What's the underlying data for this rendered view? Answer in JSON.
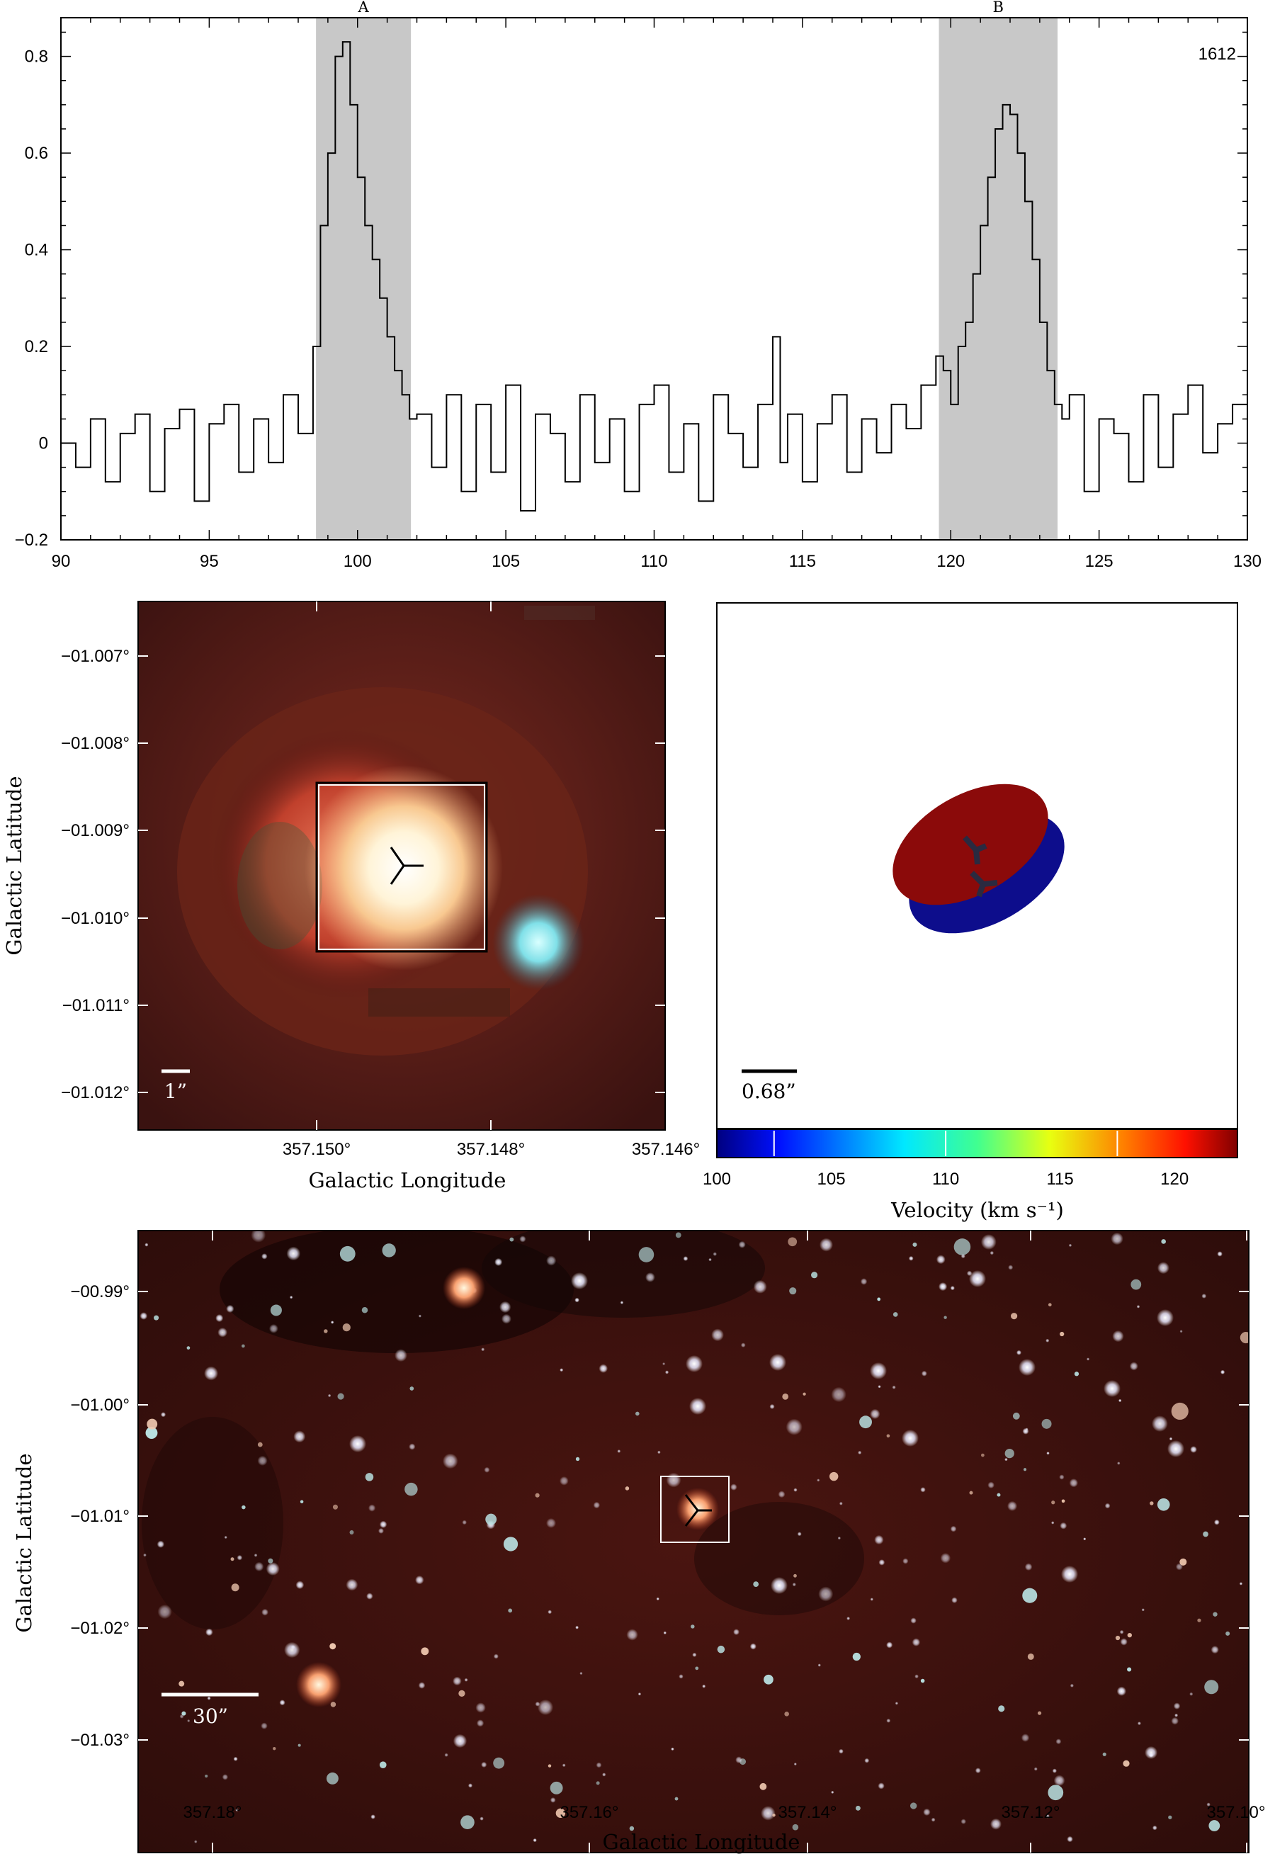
{
  "figure": {
    "spectrum_panel": {
      "label": "1612",
      "region_labels": [
        "A",
        "B"
      ]
    },
    "cutout_panel": {
      "ylabel": "Galactic Latitude",
      "xlabel": "Galactic Longitude",
      "y_ticks": [
        "−01.007°",
        "−01.008°",
        "−01.009°",
        "−01.010°",
        "−01.011°",
        "−01.012°"
      ],
      "x_ticks": [
        "357.150°",
        "357.148°",
        "357.146°"
      ],
      "scalebar_label": "1”"
    },
    "model_panel": {
      "scalebar_label": "0.68”",
      "colorbar_label": "Velocity (km s⁻¹)",
      "colorbar_ticks": [
        "100",
        "105",
        "110",
        "115",
        "120"
      ],
      "colors": {
        "red_lobe": "#8b0a0a",
        "blue_lobe": "#0d0d8c"
      }
    },
    "field_panel": {
      "ylabel": "Galactic Latitude",
      "xlabel": "Galactic Longitude",
      "y_ticks": [
        "−00.99°",
        "−01.00°",
        "−01.01°",
        "−01.02°",
        "−01.03°"
      ],
      "x_ticks": [
        "357.18°",
        "357.16°",
        "357.14°",
        "357.12°",
        "357.10°"
      ],
      "scalebar_label": "30”"
    }
  },
  "chart_data": {
    "type": "line",
    "step": true,
    "title": "",
    "xlabel": "",
    "ylabel": "",
    "xlim": [
      90,
      130
    ],
    "ylim": [
      -0.2,
      0.88
    ],
    "x_ticks": [
      90,
      95,
      100,
      105,
      110,
      115,
      120,
      125,
      130
    ],
    "y_ticks": [
      -0.2,
      0,
      0.2,
      0.4,
      0.6,
      0.8
    ],
    "shaded_regions": [
      {
        "label": "A",
        "x_range": [
          98.6,
          101.8
        ]
      },
      {
        "label": "B",
        "x_range": [
          119.6,
          123.6
        ]
      }
    ],
    "series": [
      {
        "x": [
          90.0,
          90.5,
          91.0,
          91.5,
          92.0,
          92.5,
          93.0,
          93.5,
          94.0,
          94.5,
          95.0,
          95.5,
          96.0,
          96.5,
          97.0,
          97.5,
          98.0,
          98.5,
          98.75,
          99.0,
          99.25,
          99.5,
          99.75,
          100.0,
          100.25,
          100.5,
          100.75,
          101.0,
          101.25,
          101.5,
          101.75,
          102.0,
          102.5,
          103.0,
          103.5,
          104.0,
          104.5,
          105.0,
          105.5,
          106.0,
          106.5,
          107.0,
          107.5,
          108.0,
          108.5,
          109.0,
          109.5,
          110.0,
          110.5,
          111.0,
          111.5,
          112.0,
          112.5,
          113.0,
          113.5,
          114.0,
          114.25,
          114.5,
          115.0,
          115.5,
          116.0,
          116.5,
          117.0,
          117.5,
          118.0,
          118.5,
          119.0,
          119.5,
          119.75,
          120.0,
          120.25,
          120.5,
          120.75,
          121.0,
          121.25,
          121.5,
          121.75,
          122.0,
          122.25,
          122.5,
          122.75,
          123.0,
          123.25,
          123.5,
          123.75,
          124.0,
          124.5,
          125.0,
          125.5,
          126.0,
          126.5,
          127.0,
          127.5,
          128.0,
          128.5,
          129.0,
          129.5,
          130.0
        ],
        "y": [
          0.0,
          -0.05,
          0.05,
          -0.08,
          0.02,
          0.06,
          -0.1,
          0.03,
          0.07,
          -0.12,
          0.04,
          0.08,
          -0.06,
          0.05,
          -0.04,
          0.1,
          0.02,
          0.2,
          0.45,
          0.6,
          0.8,
          0.83,
          0.7,
          0.55,
          0.45,
          0.38,
          0.3,
          0.22,
          0.15,
          0.1,
          0.05,
          0.06,
          -0.05,
          0.1,
          -0.1,
          0.08,
          -0.06,
          0.12,
          -0.14,
          0.06,
          0.02,
          -0.08,
          0.1,
          -0.04,
          0.05,
          -0.1,
          0.08,
          0.12,
          -0.06,
          0.04,
          -0.12,
          0.1,
          0.02,
          -0.05,
          0.08,
          0.22,
          -0.04,
          0.06,
          -0.08,
          0.04,
          0.1,
          -0.06,
          0.05,
          -0.02,
          0.08,
          0.03,
          0.12,
          0.18,
          0.15,
          0.08,
          0.2,
          0.25,
          0.35,
          0.45,
          0.55,
          0.65,
          0.7,
          0.68,
          0.6,
          0.5,
          0.38,
          0.25,
          0.15,
          0.08,
          0.05,
          0.1,
          -0.1,
          0.05,
          0.02,
          -0.08,
          0.1,
          -0.05,
          0.06,
          0.12,
          -0.02,
          0.04,
          0.08,
          0.0
        ]
      }
    ]
  }
}
